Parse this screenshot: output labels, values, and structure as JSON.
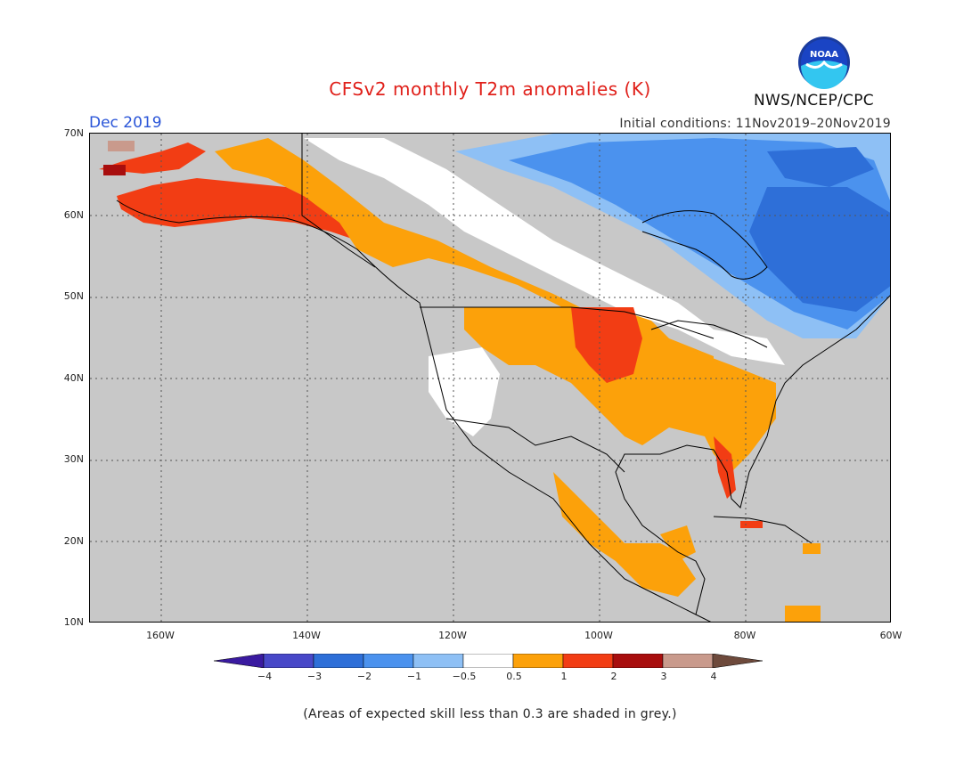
{
  "header": {
    "title": "CFSv2 monthly T2m anomalies (K)",
    "period": "Dec 2019",
    "initial_conditions": "Initial conditions: 11Nov2019–20Nov2019",
    "org": "NWS/NCEP/CPC",
    "logo_text": "NOAA"
  },
  "map": {
    "lat_labels": [
      "70N",
      "60N",
      "50N",
      "40N",
      "30N",
      "20N",
      "10N"
    ],
    "lon_labels": [
      "160W",
      "140W",
      "120W",
      "100W",
      "80W",
      "60W"
    ],
    "background_color": "#c8c8c8"
  },
  "colorbar": {
    "labels": [
      "−4",
      "−3",
      "−2",
      "−1",
      "−0.5",
      "0.5",
      "1",
      "2",
      "3",
      "4"
    ],
    "colors": [
      "#3a1aa0",
      "#4848c8",
      "#2e6fd8",
      "#4b92ee",
      "#8ec0f5",
      "#ffffff",
      "#fca10a",
      "#f23d14",
      "#a80e0e",
      "#c99a8c",
      "#6e4a3c"
    ]
  },
  "note": "(Areas of expected skill less than 0.3 are shaded in grey.)"
}
